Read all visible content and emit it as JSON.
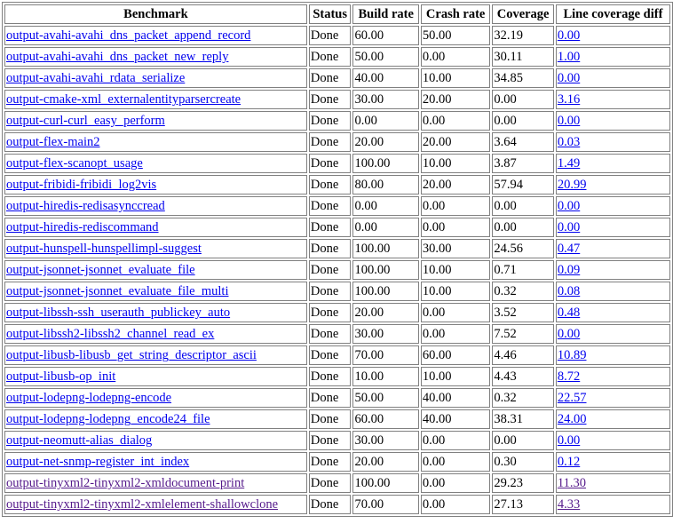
{
  "table": {
    "headers": [
      "Benchmark",
      "Status",
      "Build rate",
      "Crash rate",
      "Coverage",
      "Line coverage diff"
    ],
    "rows": [
      {
        "benchmark": "output-avahi-avahi_dns_packet_append_record",
        "status": "Done",
        "build_rate": "60.00",
        "crash_rate": "50.00",
        "coverage": "32.19",
        "line_coverage_diff": "0.00",
        "visited": false
      },
      {
        "benchmark": "output-avahi-avahi_dns_packet_new_reply",
        "status": "Done",
        "build_rate": "50.00",
        "crash_rate": "0.00",
        "coverage": "30.11",
        "line_coverage_diff": "1.00",
        "visited": false
      },
      {
        "benchmark": "output-avahi-avahi_rdata_serialize",
        "status": "Done",
        "build_rate": "40.00",
        "crash_rate": "10.00",
        "coverage": "34.85",
        "line_coverage_diff": "0.00",
        "visited": false
      },
      {
        "benchmark": "output-cmake-xml_externalentityparsercreate",
        "status": "Done",
        "build_rate": "30.00",
        "crash_rate": "20.00",
        "coverage": "0.00",
        "line_coverage_diff": "3.16",
        "visited": false
      },
      {
        "benchmark": "output-curl-curl_easy_perform",
        "status": "Done",
        "build_rate": "0.00",
        "crash_rate": "0.00",
        "coverage": "0.00",
        "line_coverage_diff": "0.00",
        "visited": false
      },
      {
        "benchmark": "output-flex-main2",
        "status": "Done",
        "build_rate": "20.00",
        "crash_rate": "20.00",
        "coverage": "3.64",
        "line_coverage_diff": "0.03",
        "visited": false
      },
      {
        "benchmark": "output-flex-scanopt_usage",
        "status": "Done",
        "build_rate": "100.00",
        "crash_rate": "10.00",
        "coverage": "3.87",
        "line_coverage_diff": "1.49",
        "visited": false
      },
      {
        "benchmark": "output-fribidi-fribidi_log2vis",
        "status": "Done",
        "build_rate": "80.00",
        "crash_rate": "20.00",
        "coverage": "57.94",
        "line_coverage_diff": "20.99",
        "visited": false
      },
      {
        "benchmark": "output-hiredis-redisasynccread",
        "status": "Done",
        "build_rate": "0.00",
        "crash_rate": "0.00",
        "coverage": "0.00",
        "line_coverage_diff": "0.00",
        "visited": false
      },
      {
        "benchmark": "output-hiredis-rediscommand",
        "status": "Done",
        "build_rate": "0.00",
        "crash_rate": "0.00",
        "coverage": "0.00",
        "line_coverage_diff": "0.00",
        "visited": false
      },
      {
        "benchmark": "output-hunspell-hunspellimpl-suggest",
        "status": "Done",
        "build_rate": "100.00",
        "crash_rate": "30.00",
        "coverage": "24.56",
        "line_coverage_diff": "0.47",
        "visited": false
      },
      {
        "benchmark": "output-jsonnet-jsonnet_evaluate_file",
        "status": "Done",
        "build_rate": "100.00",
        "crash_rate": "10.00",
        "coverage": "0.71",
        "line_coverage_diff": "0.09",
        "visited": false
      },
      {
        "benchmark": "output-jsonnet-jsonnet_evaluate_file_multi",
        "status": "Done",
        "build_rate": "100.00",
        "crash_rate": "10.00",
        "coverage": "0.32",
        "line_coverage_diff": "0.08",
        "visited": false
      },
      {
        "benchmark": "output-libssh-ssh_userauth_publickey_auto",
        "status": "Done",
        "build_rate": "20.00",
        "crash_rate": "0.00",
        "coverage": "3.52",
        "line_coverage_diff": "0.48",
        "visited": false
      },
      {
        "benchmark": "output-libssh2-libssh2_channel_read_ex",
        "status": "Done",
        "build_rate": "30.00",
        "crash_rate": "0.00",
        "coverage": "7.52",
        "line_coverage_diff": "0.00",
        "visited": false
      },
      {
        "benchmark": "output-libusb-libusb_get_string_descriptor_ascii",
        "status": "Done",
        "build_rate": "70.00",
        "crash_rate": "60.00",
        "coverage": "4.46",
        "line_coverage_diff": "10.89",
        "visited": false
      },
      {
        "benchmark": "output-libusb-op_init",
        "status": "Done",
        "build_rate": "10.00",
        "crash_rate": "10.00",
        "coverage": "4.43",
        "line_coverage_diff": "8.72",
        "visited": false
      },
      {
        "benchmark": "output-lodepng-lodepng-encode",
        "status": "Done",
        "build_rate": "50.00",
        "crash_rate": "40.00",
        "coverage": "0.32",
        "line_coverage_diff": "22.57",
        "visited": false
      },
      {
        "benchmark": "output-lodepng-lodepng_encode24_file",
        "status": "Done",
        "build_rate": "60.00",
        "crash_rate": "40.00",
        "coverage": "38.31",
        "line_coverage_diff": "24.00",
        "visited": false
      },
      {
        "benchmark": "output-neomutt-alias_dialog",
        "status": "Done",
        "build_rate": "30.00",
        "crash_rate": "0.00",
        "coverage": "0.00",
        "line_coverage_diff": "0.00",
        "visited": false
      },
      {
        "benchmark": "output-net-snmp-register_int_index",
        "status": "Done",
        "build_rate": "20.00",
        "crash_rate": "0.00",
        "coverage": "0.30",
        "line_coverage_diff": "0.12",
        "visited": false
      },
      {
        "benchmark": "output-tinyxml2-tinyxml2-xmldocument-print",
        "status": "Done",
        "build_rate": "100.00",
        "crash_rate": "0.00",
        "coverage": "29.23",
        "line_coverage_diff": "11.30",
        "visited": true
      },
      {
        "benchmark": "output-tinyxml2-tinyxml2-xmlelement-shallowclone",
        "status": "Done",
        "build_rate": "70.00",
        "crash_rate": "0.00",
        "coverage": "27.13",
        "line_coverage_diff": "4.33",
        "visited": true
      }
    ]
  },
  "colors": {
    "link": "#0000ee",
    "visited_link": "#551a8b",
    "border": "#808080"
  }
}
